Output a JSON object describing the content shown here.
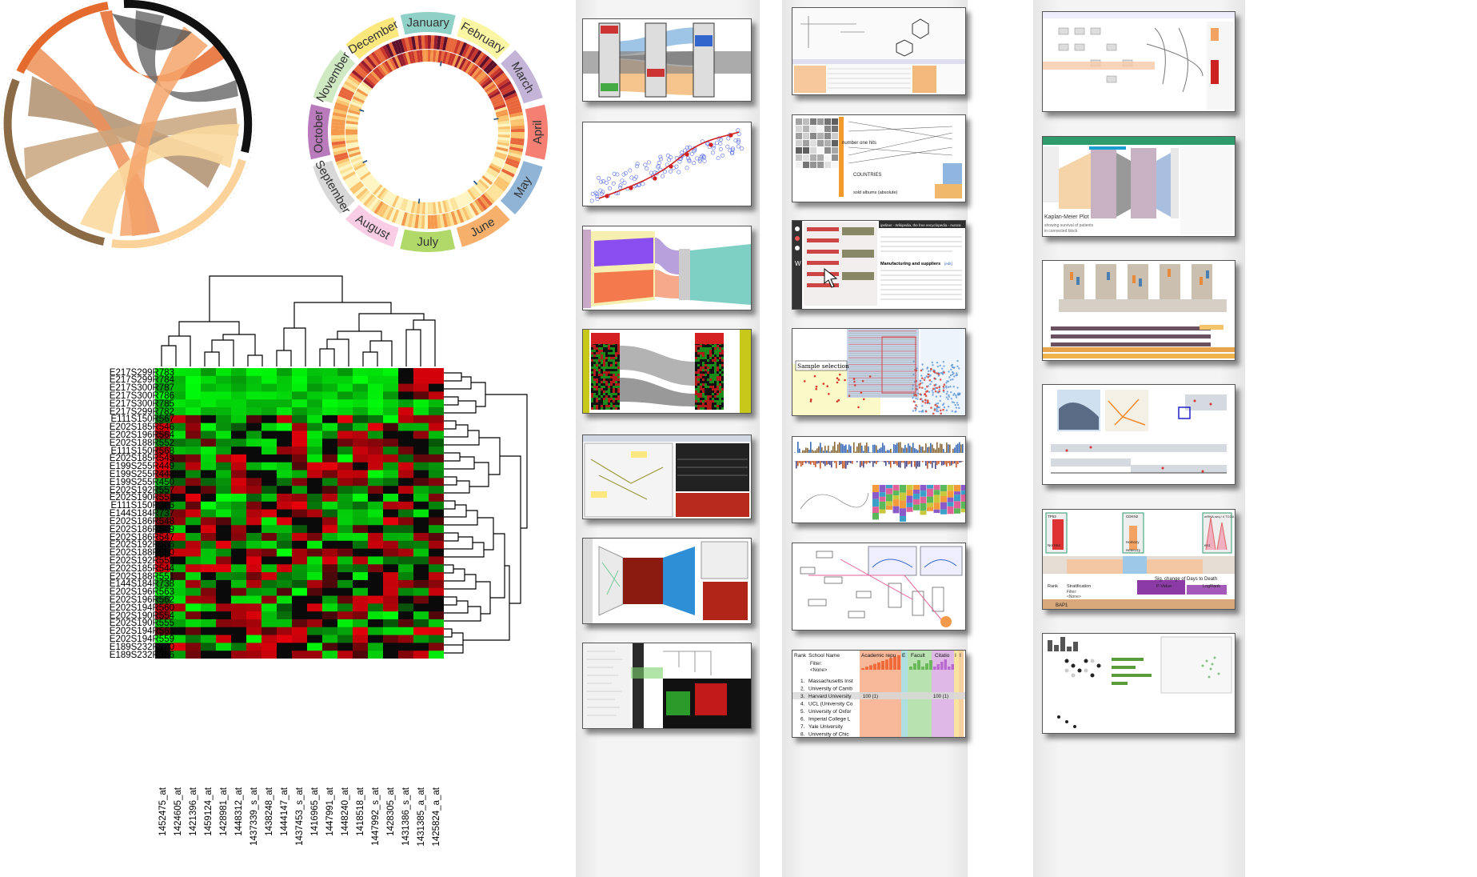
{
  "calendar": {
    "months": [
      "January",
      "February",
      "March",
      "April",
      "May",
      "June",
      "July",
      "August",
      "September",
      "October",
      "November",
      "December"
    ],
    "colors": {
      "January": "#8fd1c6",
      "February": "#fbf6a3",
      "March": "#c3b4d8",
      "April": "#f57f73",
      "May": "#8fb4d6",
      "June": "#f7b06c",
      "July": "#b0d96a",
      "August": "#f9cde4",
      "September": "#d8d8d8",
      "October": "#ba7bbd",
      "November": "#cfe9c3",
      "December": "#fbe87d"
    }
  },
  "heatmap": {
    "rows": [
      "E217S299R783",
      "E217S299R784",
      "E217S300R787",
      "E217S300R786",
      "E217S300R785",
      "E217S299R782",
      "E111S150R567",
      "E202S185R546",
      "E202S196R564",
      "E202S188R552",
      "E111S150R568",
      "E202S185R545",
      "E199S255R449",
      "E199S255R448",
      "E199S255R450",
      "E202S192R557",
      "E202S190R553",
      "E111S150R566",
      "E144S184R737",
      "E202S186R548",
      "E202S186R549",
      "E202S186R547",
      "E202S192R556",
      "E202S188R550",
      "E202S192R558",
      "E202S185R544",
      "E202S188R551",
      "E144S184R738",
      "E202S196R563",
      "E202S196R562",
      "E202S194R560",
      "E202S190R554",
      "E202S190R555",
      "E202S194R561",
      "E202S194R559",
      "E189S232R190",
      "E189S232R386"
    ],
    "cols": [
      "1452475_at",
      "1424605_at",
      "1421396_at",
      "1459124_at",
      "1428981_at",
      "1448312_at",
      "1437339_s_at",
      "1438248_at",
      "1444147_at",
      "1437453_s_at",
      "1416965_at",
      "1447991_at",
      "1448240_at",
      "1418518_at",
      "1447992_s_at",
      "1428305_at",
      "1431386_s_at",
      "1431385_a_at",
      "1425824_a_at"
    ]
  },
  "paper_thumbs": {
    "c3r4": {
      "sample_selection": "Sample selection"
    },
    "c3r2": {
      "number_one_hits": "number one hits",
      "countries": "COUNTRIES",
      "sold_albums": "sold albums (absolute)"
    },
    "c3r3": {
      "wiki_title": "ipeliner - Wikipedia, the free encyclopedia - Aurora",
      "wiki_heading": "Manufacturing and suppliers",
      "wiki_edit": "[edit]"
    },
    "c3r7": {
      "headers": [
        "Rank",
        "School Name",
        "Academic repu",
        "E",
        "Facult",
        "Citatio",
        "I",
        "I"
      ],
      "filter_label": "Filter:",
      "filter_value": "<None>",
      "rows": [
        {
          "rank": "1.",
          "name": "Massachusetts Inst"
        },
        {
          "rank": "2.",
          "name": "University of Camb"
        },
        {
          "rank": "3.",
          "name": "Harvard University",
          "acad": "100 (1)",
          "cit": "100 (1)"
        },
        {
          "rank": "4.",
          "name": "UCL (University Co"
        },
        {
          "rank": "5.",
          "name": "University of Oxfor"
        },
        {
          "rank": "6.",
          "name": "Imperial College L"
        },
        {
          "rank": "7.",
          "name": "Yale University"
        },
        {
          "rank": "8.",
          "name": "University of Chic"
        }
      ]
    },
    "c4r2": {
      "km_title": "Kaplan-Meier Plot",
      "km_sub1": "showing survival of patients",
      "km_sub2": "in connected block"
    },
    "c4r5": {
      "labels": [
        "Sig. change of Days to Death",
        "Rank",
        "Stratification",
        "P-Value",
        "LogRank",
        "Filter:",
        "<None>",
        "BAP1",
        "Not Mut",
        "Homozy",
        "Heterozy",
        "TP53",
        "CDKN2",
        "mRNA-seq / 4 TCGA",
        "en1"
      ]
    }
  }
}
